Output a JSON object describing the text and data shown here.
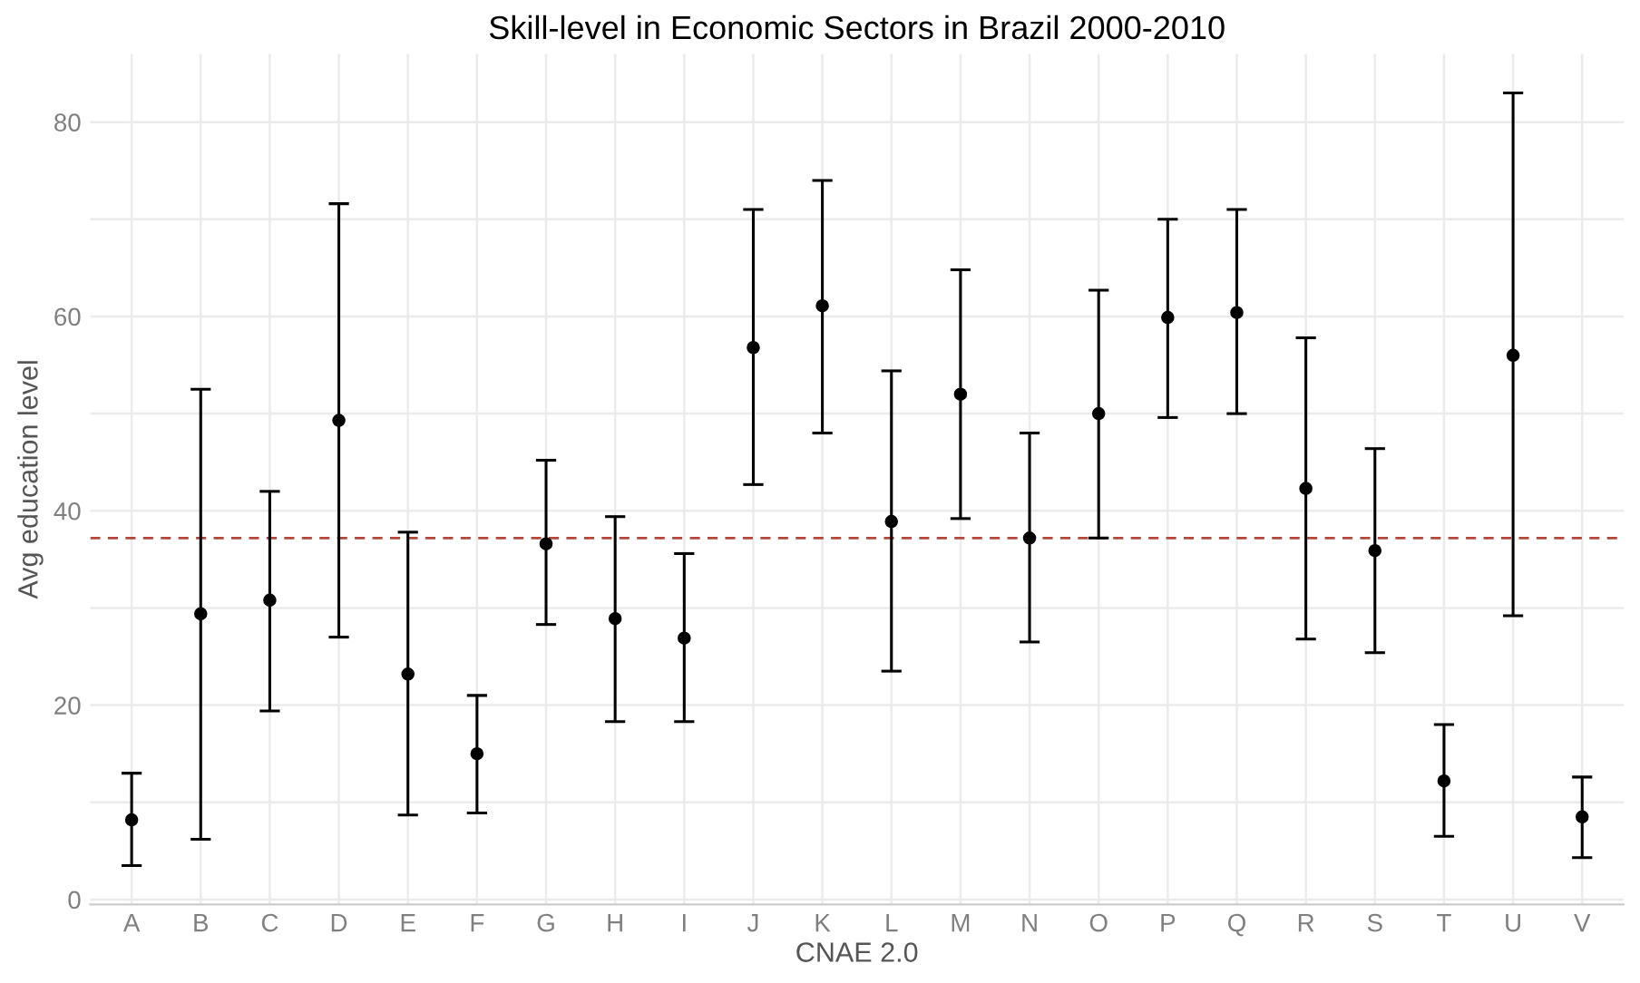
{
  "chart_data": {
    "type": "scatter",
    "title": "Skill-level in Economic Sectors in Brazil 2000-2010",
    "xlabel": "CNAE 2.0",
    "ylabel": "Avg education level",
    "categories": [
      "A",
      "B",
      "C",
      "D",
      "E",
      "F",
      "G",
      "H",
      "I",
      "J",
      "K",
      "L",
      "M",
      "N",
      "O",
      "P",
      "Q",
      "R",
      "S",
      "T",
      "U",
      "V"
    ],
    "series": [
      {
        "color": "#000000",
        "values": [
          8.2,
          29.4,
          30.8,
          49.3,
          23.2,
          15,
          36.6,
          28.9,
          26.9,
          56.8,
          61.1,
          38.9,
          52,
          37.2,
          50,
          59.9,
          60.4,
          42.3,
          35.9,
          12.2,
          56,
          8.5
        ],
        "errors": [
          [
            3.5,
            13
          ],
          [
            6.2,
            52.5
          ],
          [
            19.4,
            42
          ],
          [
            27,
            71.6
          ],
          [
            8.7,
            37.8
          ],
          [
            8.9,
            21
          ],
          [
            28.3,
            45.2
          ],
          [
            18.3,
            39.4
          ],
          [
            18.3,
            35.6
          ],
          [
            42.7,
            71
          ],
          [
            48,
            74
          ],
          [
            23.5,
            54.4
          ],
          [
            39.2,
            64.8
          ],
          [
            26.5,
            48
          ],
          [
            37.2,
            62.7
          ],
          [
            49.6,
            70
          ],
          [
            50,
            71
          ],
          [
            26.8,
            57.8
          ],
          [
            25.4,
            46.4
          ],
          [
            6.5,
            18
          ],
          [
            29.2,
            83
          ],
          [
            4.3,
            12.6
          ]
        ]
      }
    ],
    "marker": "circle",
    "ylim": [
      -0.5,
      87
    ],
    "yticks": [
      0,
      {
        "value": 10,
        "label": null
      },
      20,
      {
        "value": 30,
        "label": null
      },
      40,
      {
        "value": 50,
        "label": null
      },
      60,
      {
        "value": 70,
        "label": null
      },
      80
    ],
    "ref_lines": [
      {
        "axis": "y",
        "value": 37.2,
        "color": "#b5473a",
        "line_style": "dashed"
      }
    ],
    "grid": true,
    "legend": false
  }
}
